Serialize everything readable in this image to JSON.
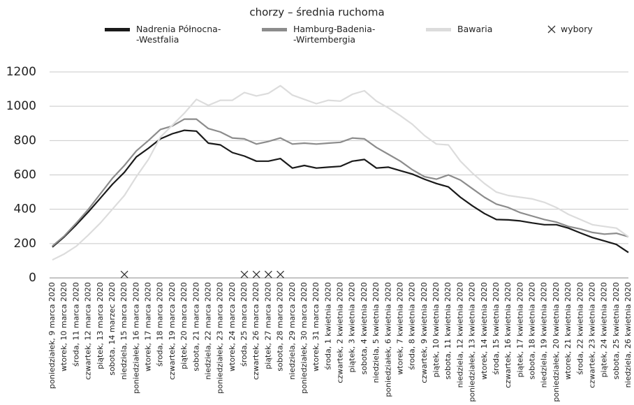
{
  "chart_data": {
    "type": "line",
    "title": "chorzy – średnia ruchoma",
    "categories": [
      "poniedziałek, 9 marca 2020",
      "wtorek, 10 marca 2020",
      "środa, 11 marca 2020",
      "czwartek, 12 marca 2020",
      "piątek, 13 marca 2020",
      "sobota, 14 marzec 2020",
      "niedziela, 15 marca 2020",
      "poniedziałek, 16 marca 2020",
      "wtorek, 17 marca 2020",
      "środa, 18 marca 2020",
      "czwartek, 19 marca 2020",
      "piątek, 20 marca 2020",
      "sobota, 21 marca 2020",
      "niedziela, 22 marca 2020",
      "poniedziałek, 23 marca 2020",
      "wtorek, 24 marca 2020",
      "środa, 25 marca 2020",
      "czwartek, 26 marca 2020",
      "piątek, 27 marca 2020",
      "sobota, 28 marca 2020",
      "niedziela, 29 marca 2020",
      "poniedziałek, 30 marca 2020",
      "wtorek, 31 marca 2020",
      "środa, 1 kwietnia 2020",
      "czwartek, 2 kwietnia 2020",
      "piątek, 3 kwietnia 2020",
      "sobota, 4 kwietnia 2020",
      "niedziela, 5 kwietnia 2020",
      "poniedziałek, 6 kwietnia 2020",
      "wtorek, 7 kwietnia 2020",
      "środa, 8 kwietnia 2020",
      "czwartek, 9 kwietnia 2020",
      "piątek, 10 kwietnia 2020",
      "sobota, 11 kwietnia 2020",
      "niedziela, 12 kwietnia 2020",
      "poniedziałek, 13 kwietnia 2020",
      "wtorek, 14 kwietnia 2020",
      "środa, 15 kwietnia 2020",
      "czwartek, 16 kwietnia 2020",
      "piątek, 17 kwietnia 2020",
      "sobota, 18 kwietnia 2020",
      "niedziela, 19 kwietnia 2020",
      "poniedziałek, 20 kwietnia 2020",
      "wtorek, 21 kwietnia 2020",
      "środa, 22 kwietnia 2020",
      "czwartek, 23 kwietnia 2020",
      "piątek, 24 kwietnia 2020",
      "sobota, 25 kwietnia 2020",
      "niedziela, 26 kwietnia 2020"
    ],
    "series": [
      {
        "name": "Nadrenia Północna-\n-Westfalia",
        "color": "#1a1a1a",
        "values": [
          180,
          240,
          310,
          385,
          465,
          545,
          615,
          705,
          755,
          810,
          840,
          860,
          855,
          785,
          775,
          730,
          710,
          680,
          680,
          695,
          640,
          655,
          640,
          645,
          650,
          680,
          690,
          640,
          645,
          625,
          605,
          575,
          550,
          530,
          470,
          420,
          375,
          340,
          338,
          332,
          320,
          310,
          310,
          290,
          262,
          235,
          215,
          195,
          148
        ]
      },
      {
        "name": "Hamburg-Badenia-\n-Wirtembergia",
        "color": "#8c8c8c",
        "values": [
          185,
          245,
          320,
          400,
          490,
          580,
          655,
          740,
          800,
          865,
          885,
          925,
          925,
          870,
          850,
          815,
          810,
          780,
          795,
          815,
          780,
          785,
          780,
          785,
          790,
          815,
          810,
          760,
          720,
          680,
          630,
          590,
          575,
          600,
          570,
          520,
          470,
          430,
          410,
          380,
          360,
          340,
          325,
          300,
          285,
          265,
          255,
          260,
          240
        ]
      },
      {
        "name": "Bawaria",
        "color": "#dcdcdc",
        "values": [
          105,
          140,
          185,
          250,
          320,
          400,
          480,
          590,
          690,
          820,
          890,
          960,
          1040,
          1005,
          1035,
          1035,
          1080,
          1060,
          1075,
          1120,
          1065,
          1040,
          1015,
          1035,
          1030,
          1070,
          1090,
          1030,
          990,
          945,
          895,
          830,
          780,
          775,
          680,
          610,
          550,
          500,
          480,
          470,
          460,
          440,
          410,
          370,
          340,
          310,
          300,
          290,
          240
        ]
      },
      {
        "name": "wybory",
        "type": "scatter",
        "color": "#333333",
        "values": [
          null,
          null,
          null,
          null,
          null,
          null,
          20,
          null,
          null,
          null,
          null,
          null,
          null,
          null,
          null,
          null,
          20,
          20,
          20,
          20,
          null,
          null,
          null,
          null,
          null,
          null,
          null,
          null,
          null,
          null,
          null,
          null,
          null,
          null,
          null,
          null,
          null,
          null,
          null,
          null,
          null,
          null,
          null,
          null,
          null,
          null,
          null,
          null,
          null
        ]
      }
    ],
    "ylim": [
      0,
      1200
    ],
    "yticks": [
      0,
      200,
      400,
      600,
      800,
      1000,
      1200
    ],
    "grid": true
  }
}
